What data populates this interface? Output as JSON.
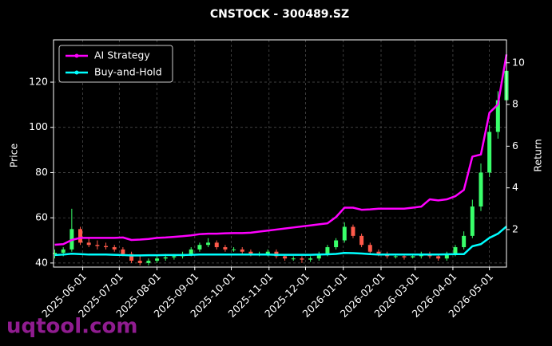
{
  "chart_data": {
    "type": "candlestick",
    "title": "CNSTOCK - 300489.SZ",
    "ylabel": "Price",
    "y2label": "Return",
    "watermark": "uqtool.com",
    "x": [
      "2025-05-09",
      "2025-05-16",
      "2025-05-23",
      "2025-05-30",
      "2025-06-06",
      "2025-06-13",
      "2025-06-20",
      "2025-06-27",
      "2025-07-04",
      "2025-07-11",
      "2025-07-18",
      "2025-07-25",
      "2025-08-01",
      "2025-08-08",
      "2025-08-15",
      "2025-08-22",
      "2025-08-29",
      "2025-09-05",
      "2025-09-12",
      "2025-09-19",
      "2025-09-26",
      "2025-10-03",
      "2025-10-10",
      "2025-10-17",
      "2025-10-24",
      "2025-10-31",
      "2025-11-07",
      "2025-11-14",
      "2025-11-21",
      "2025-11-28",
      "2025-12-05",
      "2025-12-12",
      "2025-12-19",
      "2025-12-26",
      "2026-01-02",
      "2026-01-09",
      "2026-01-16",
      "2026-01-23",
      "2026-01-30",
      "2026-02-06",
      "2026-02-13",
      "2026-02-20",
      "2026-02-27",
      "2026-03-06",
      "2026-03-13",
      "2026-03-20",
      "2026-03-27",
      "2026-04-03",
      "2026-04-10",
      "2026-04-17",
      "2026-04-24",
      "2026-05-01",
      "2026-05-08",
      "2026-05-15"
    ],
    "open": [
      44,
      44.5,
      46,
      55,
      49,
      48,
      47.5,
      47,
      46,
      44,
      41,
      40,
      41,
      42,
      42.5,
      43,
      44,
      46,
      48,
      49,
      47,
      46,
      46,
      45,
      44,
      44,
      45,
      43,
      42,
      42,
      41.5,
      42,
      44,
      47,
      50,
      56,
      52,
      48,
      45,
      44,
      43,
      43,
      42.5,
      43,
      43.5,
      43,
      42,
      44,
      47,
      52,
      65,
      80,
      98,
      112
    ],
    "high": [
      46,
      47,
      64,
      56,
      51,
      50,
      49,
      48,
      47,
      45,
      43,
      42,
      43,
      44,
      44,
      45,
      47,
      49,
      51,
      50,
      48,
      47,
      47,
      46,
      45,
      46,
      46,
      44,
      43,
      43,
      43,
      45,
      48,
      51,
      58,
      57,
      53,
      49,
      46,
      45,
      44,
      44,
      44,
      45,
      45,
      44,
      45,
      48,
      54,
      68,
      84,
      101,
      116,
      134
    ],
    "low": [
      42,
      43,
      45,
      48,
      47,
      46,
      46,
      45,
      43,
      40,
      39,
      39,
      40,
      41,
      41.5,
      42,
      43,
      45,
      47,
      46,
      45,
      45,
      44,
      43,
      43,
      43,
      42,
      41,
      41,
      40,
      40.5,
      41,
      43,
      46,
      49,
      51,
      47,
      44,
      43,
      42,
      42,
      41.5,
      42,
      42,
      42,
      41,
      41,
      43,
      46,
      51,
      63,
      78,
      95,
      110
    ],
    "close": [
      44.5,
      46,
      55,
      49,
      48,
      47.5,
      47,
      46,
      44,
      41,
      40,
      41,
      42,
      42.5,
      43,
      44,
      46,
      48,
      49,
      47,
      46,
      46,
      45,
      44,
      44,
      45,
      43,
      42,
      42,
      41.5,
      42,
      44,
      47,
      50,
      56,
      52,
      48,
      45,
      44,
      43,
      43,
      42.5,
      43,
      43.5,
      43,
      42,
      44,
      47,
      52,
      65,
      80,
      98,
      112,
      125
    ],
    "up_color": "#39ff6a",
    "down_color": "#ff5a4a",
    "series": [
      {
        "name": "AI Strategy",
        "color": "#ff00ff",
        "axis": "y2",
        "values": [
          1.27,
          1.3,
          1.5,
          1.6,
          1.6,
          1.6,
          1.6,
          1.6,
          1.62,
          1.5,
          1.52,
          1.55,
          1.6,
          1.62,
          1.65,
          1.68,
          1.72,
          1.78,
          1.8,
          1.8,
          1.82,
          1.83,
          1.83,
          1.85,
          1.9,
          1.95,
          2.0,
          2.05,
          2.1,
          2.15,
          2.2,
          2.25,
          2.3,
          2.6,
          3.05,
          3.05,
          2.95,
          2.97,
          3.0,
          3.0,
          3.0,
          3.0,
          3.05,
          3.1,
          3.45,
          3.4,
          3.45,
          3.6,
          3.9,
          5.5,
          5.6,
          7.6,
          8.0,
          10.4
        ]
      },
      {
        "name": "Buy-and-Hold",
        "color": "#00ffff",
        "axis": "y2",
        "values": [
          0.78,
          0.8,
          0.84,
          0.82,
          0.8,
          0.8,
          0.8,
          0.79,
          0.78,
          0.76,
          0.76,
          0.77,
          0.77,
          0.78,
          0.78,
          0.78,
          0.79,
          0.8,
          0.8,
          0.8,
          0.8,
          0.8,
          0.8,
          0.8,
          0.8,
          0.8,
          0.79,
          0.79,
          0.79,
          0.79,
          0.79,
          0.8,
          0.81,
          0.83,
          0.88,
          0.87,
          0.85,
          0.82,
          0.8,
          0.8,
          0.8,
          0.8,
          0.8,
          0.8,
          0.8,
          0.8,
          0.81,
          0.82,
          0.82,
          1.2,
          1.3,
          1.6,
          1.8,
          2.15
        ]
      }
    ],
    "xlim": [
      "2025-05-08",
      "2026-05-15"
    ],
    "xticks": [
      "2025-06-01",
      "2025-07-01",
      "2025-08-01",
      "2025-09-01",
      "2025-10-01",
      "2025-11-01",
      "2025-12-01",
      "2026-01-01",
      "2026-02-01",
      "2026-03-01",
      "2026-04-01",
      "2026-05-01"
    ],
    "ylim": [
      38.2,
      138.7
    ],
    "yticks": [
      40,
      60,
      80,
      100,
      120
    ],
    "y2lim": [
      0.2,
      11.1
    ],
    "y2ticks": [
      2,
      4,
      6,
      8,
      10
    ],
    "grid": true,
    "legend": "upper left"
  }
}
